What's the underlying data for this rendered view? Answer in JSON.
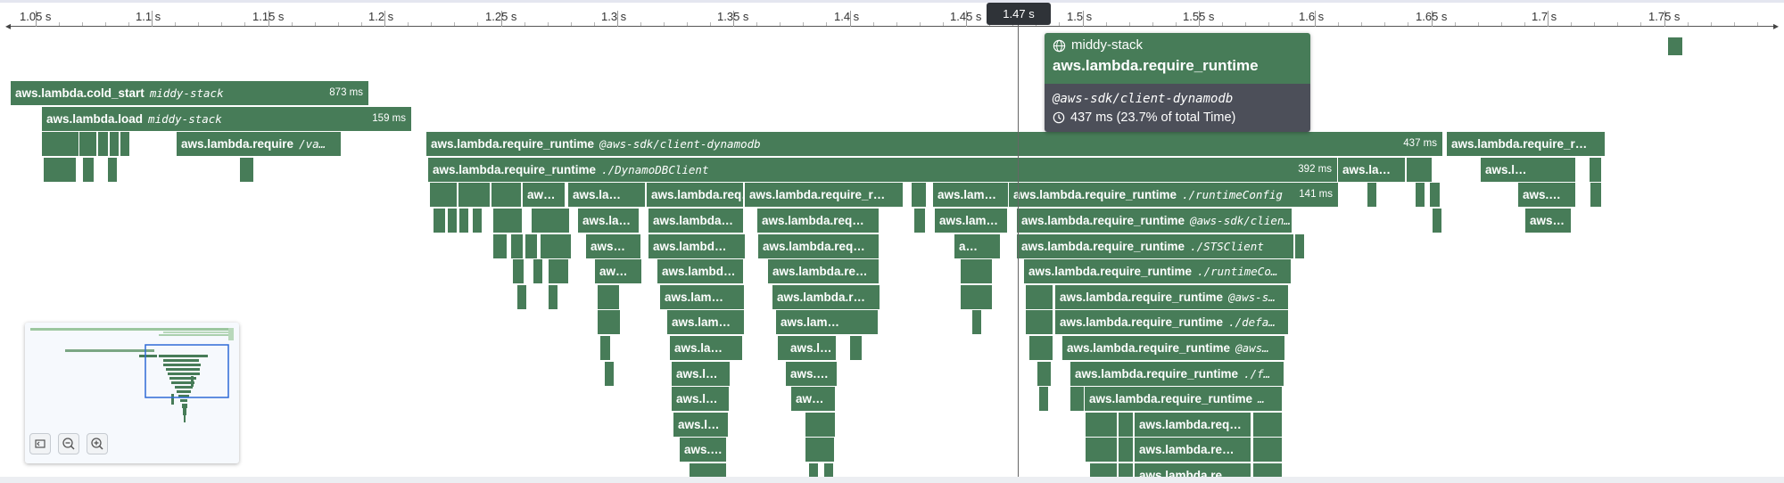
{
  "axis": {
    "ticks": [
      "1.05 s",
      "1.1 s",
      "1.15 s",
      "1.2 s",
      "1.25 s",
      "1.3 s",
      "1.35 s",
      "1.4 s",
      "1.45 s",
      "1.5 s",
      "1.55 s",
      "1.6 s",
      "1.65 s",
      "1.7 s",
      "1.75 s"
    ],
    "cursor_label": "1.47 s"
  },
  "spans": {
    "cold_start": {
      "name": "aws.lambda.cold_start",
      "module": "middy-stack",
      "duration": "873 ms"
    },
    "load": {
      "name": "aws.lambda.load",
      "module": "middy-stack",
      "duration": "159 ms"
    },
    "require_va": {
      "name": "aws.lambda.require",
      "module": "/va…"
    },
    "rr_dynamodb": {
      "name": "aws.lambda.require_runtime",
      "module": "@aws-sdk/client-dynamodb",
      "duration": "437 ms"
    },
    "rr_right": {
      "name": "aws.lambda.require_r…"
    },
    "rr_dynamodbclient": {
      "name": "aws.lambda.require_runtime",
      "module": "./DynamoDBClient",
      "duration": "392 ms"
    },
    "r2_la": {
      "name": "aws.la…"
    },
    "r2_right_l": {
      "name": "aws.l…"
    },
    "r3_aw": {
      "name": "aw…"
    },
    "r3_la": {
      "name": "aws.la…"
    },
    "r3_lambda_req": {
      "name": "aws.lambda.req…"
    },
    "r3_lambda_r": {
      "name": "aws.lambda.require_r…"
    },
    "r3_lam": {
      "name": "aws.lam…"
    },
    "r3_runtimeconfig": {
      "name": "aws.lambda.require_runtime",
      "module": "./runtimeConfig",
      "duration": "141 ms"
    },
    "r3_right_dots": {
      "name": "aws.…"
    },
    "r4_la": {
      "name": "aws.la…"
    },
    "r4_lambda": {
      "name": "aws.lambda…"
    },
    "r4_lambda_req": {
      "name": "aws.lambda.req…"
    },
    "r4_lam": {
      "name": "aws.lam…"
    },
    "r4_client": {
      "name": "aws.lambda.require_runtime",
      "module": "@aws-sdk/clien…"
    },
    "r4_right": {
      "name": "aws…"
    },
    "r5_aws": {
      "name": "aws…"
    },
    "r5_lambd": {
      "name": "aws.lambd…"
    },
    "r5_lambda_req": {
      "name": "aws.lambda.req…"
    },
    "r5_a": {
      "name": "a…"
    },
    "r5_sts": {
      "name": "aws.lambda.require_runtime",
      "module": "./STSClient"
    },
    "r6_aw": {
      "name": "aw…"
    },
    "r6_lambd": {
      "name": "aws.lambd…"
    },
    "r6_lambda_re": {
      "name": "aws.lambda.re…"
    },
    "r6_runtimeco": {
      "name": "aws.lambda.require_runtime",
      "module": "./runtimeCo…"
    },
    "r7_lam": {
      "name": "aws.lam…"
    },
    "r7_lambda_r": {
      "name": "aws.lambda.r…"
    },
    "r7_aws_s": {
      "name": "aws.lambda.require_runtime",
      "module": "@aws-s…"
    },
    "r8_lam": {
      "name": "aws.lam…"
    },
    "r8_lambda": {
      "name": "aws.lam…"
    },
    "r8_defa": {
      "name": "aws.lambda.require_runtime",
      "module": "./defa…"
    },
    "r9_la": {
      "name": "aws.la…"
    },
    "r9_l": {
      "name": "aws.l…"
    },
    "r9_aws": {
      "name": "aws.lambda.require_runtime",
      "module": "@aws…"
    },
    "r10_l": {
      "name": "aws.l…"
    },
    "r10_aws": {
      "name": "aws.…"
    },
    "r10_f": {
      "name": "aws.lambda.require_runtime",
      "module": "./f…"
    },
    "r11_l": {
      "name": "aws.l…"
    },
    "r11_aw": {
      "name": "aw…"
    },
    "r11_dots": {
      "name": "aws.lambda.require_runtime",
      "module": "…"
    },
    "r12_l": {
      "name": "aws.l…"
    },
    "r12_req": {
      "name": "aws.lambda.req…"
    },
    "r13_aws": {
      "name": "aws.…"
    },
    "r13_re": {
      "name": "aws.lambda.re…"
    },
    "r14_re": {
      "name": "aws.lambda.re…"
    }
  },
  "tooltip": {
    "service": "middy-stack",
    "title": "aws.lambda.require_runtime",
    "module": "@aws-sdk/client-dynamodb",
    "duration_text": "437 ms (23.7% of total Time)"
  },
  "colors": {
    "span": "#477c58",
    "tooltip_body": "#4c4f59",
    "cursor_badge": "#2f3338"
  },
  "icons": {
    "service": "globe-icon",
    "duration": "clock-icon"
  }
}
